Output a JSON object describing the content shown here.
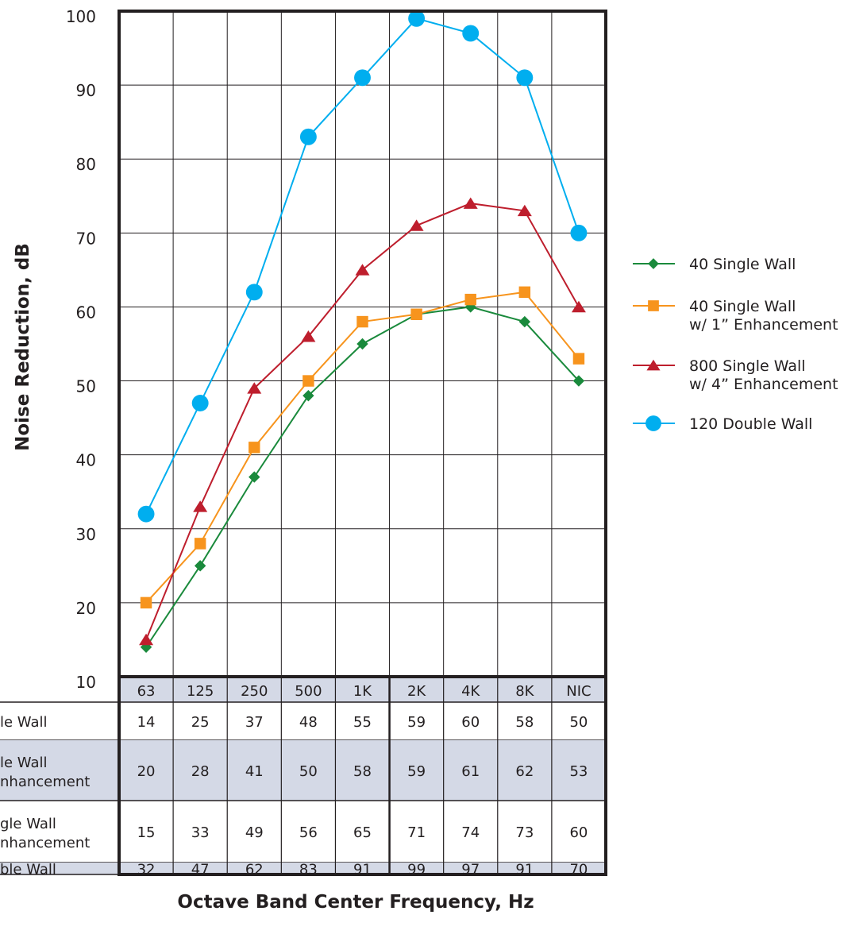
{
  "chart_data": {
    "type": "line",
    "xlabel": "Octave Band Center Frequency, Hz",
    "ylabel": "Noise Reduction, dB",
    "ylim": [
      10,
      100
    ],
    "yticks": [
      10,
      20,
      30,
      40,
      50,
      60,
      70,
      80,
      90,
      100
    ],
    "categories": [
      "63",
      "125",
      "250",
      "500",
      "1K",
      "2K",
      "4K",
      "8K",
      "NIC"
    ],
    "grid": true,
    "legend_position": "right",
    "series": [
      {
        "name": "40 Single Wall",
        "legend_lines": [
          "40 Single Wall"
        ],
        "table_lines": [
          "le Wall"
        ],
        "table_shaded": false,
        "color": "#1a8a3c",
        "marker": "diamond",
        "values": [
          14,
          25,
          37,
          48,
          55,
          59,
          60,
          58,
          50
        ]
      },
      {
        "name": "40 Single Wall w/ 1” Enhancement",
        "legend_lines": [
          "40 Single Wall",
          "w/ 1” Enhancement"
        ],
        "table_lines": [
          "le Wall",
          "nhancement"
        ],
        "table_shaded": true,
        "color": "#f7941d",
        "marker": "square",
        "values": [
          20,
          28,
          41,
          50,
          58,
          59,
          61,
          62,
          53
        ]
      },
      {
        "name": "800 Single Wall w/ 4” Enhancement",
        "legend_lines": [
          "800 Single Wall",
          "w/ 4” Enhancement"
        ],
        "table_lines": [
          "gle Wall",
          "nhancement"
        ],
        "table_shaded": false,
        "color": "#be1e2d",
        "marker": "triangle",
        "values": [
          15,
          33,
          49,
          56,
          65,
          71,
          74,
          73,
          60
        ]
      },
      {
        "name": "120 Double Wall",
        "legend_lines": [
          "120 Double Wall"
        ],
        "table_lines": [
          "ble Wall"
        ],
        "table_shaded": true,
        "color": "#00aeef",
        "marker": "circle",
        "values": [
          32,
          47,
          62,
          83,
          91,
          99,
          97,
          91,
          70
        ]
      }
    ],
    "colors": {
      "header_fill": "#d4d9e6",
      "shaded_row": "#d4d9e6",
      "frame": "#231f20",
      "grid": "#231f20"
    }
  }
}
